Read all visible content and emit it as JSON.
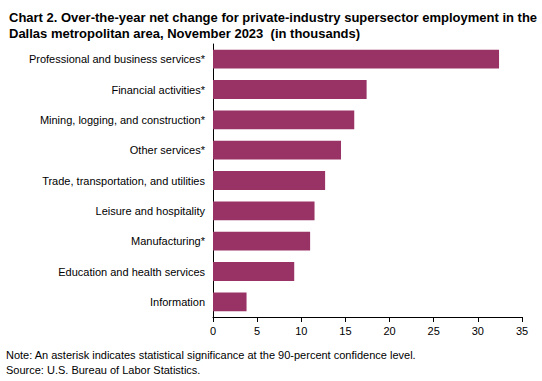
{
  "chart_data": {
    "type": "bar",
    "title": "Chart 2. Over-the-year net change for private-industry supersector employment in the Dallas metropolitan area, November 2023  (in thousands)",
    "orientation": "horizontal",
    "categories": [
      "Professional and business services*",
      "Financial activities*",
      "Mining, logging, and construction*",
      "Other services*",
      "Trade, transportation, and utilities",
      "Leisure and hospitality",
      "Manufacturing*",
      "Education and health services",
      "Information"
    ],
    "values": [
      32.4,
      17.4,
      16.0,
      14.5,
      12.7,
      11.5,
      11.0,
      9.2,
      3.8
    ],
    "color": "#993366",
    "xlim": [
      0,
      35
    ],
    "xticks": [
      0,
      5,
      10,
      15,
      20,
      25,
      30,
      35
    ],
    "grid": false,
    "note": "Note: An asterisk indicates statistical significance at the 90-percent confidence level.",
    "source": "Source: U.S. Bureau of Labor Statistics."
  }
}
